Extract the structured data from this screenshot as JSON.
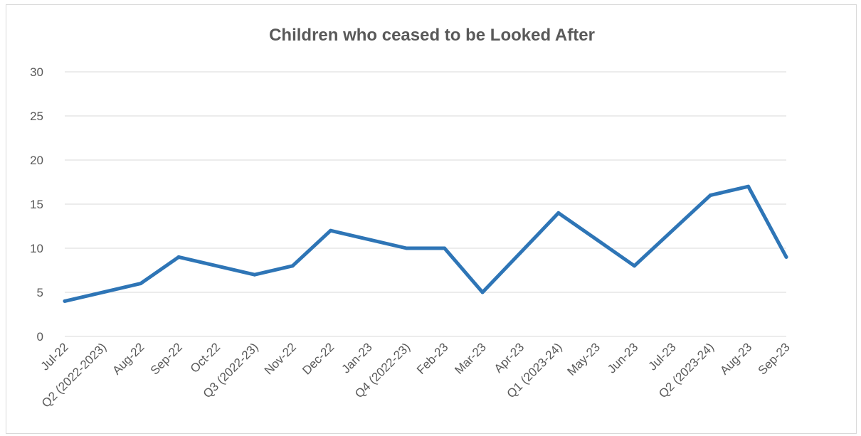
{
  "chart_data": {
    "type": "line",
    "title": "Children who ceased to be Looked After",
    "xlabel": "",
    "ylabel": "",
    "ylim": [
      0,
      30
    ],
    "yticks": [
      0,
      5,
      10,
      15,
      20,
      25,
      30
    ],
    "grid": true,
    "legend": "none",
    "categories": [
      "Jul-22",
      "Q2 (2022-2023)",
      "Aug-22",
      "Sep-22",
      "Oct-22",
      "Q3 (2022-23)",
      "Nov-22",
      "Dec-22",
      "Jan-23",
      "Q4 (2022-23)",
      "Feb-23",
      "Mar-23",
      "Apr-23",
      "Q1 (2023-24)",
      "May-23",
      "Jun-23",
      "Jul-23",
      "Q2 (2023-24)",
      "Aug-23",
      "Sep-23"
    ],
    "points": [
      {
        "x": "Jul-22",
        "y": 4
      },
      {
        "x": "Aug-22",
        "y": 6
      },
      {
        "x": "Sep-22",
        "y": 9
      },
      {
        "x": "Q3 (2022-23)",
        "y": 7
      },
      {
        "x": "Nov-22",
        "y": 8
      },
      {
        "x": "Dec-22",
        "y": 12
      },
      {
        "x": "Q4 (2022-23)",
        "y": 10
      },
      {
        "x": "Feb-23",
        "y": 10
      },
      {
        "x": "Mar-23",
        "y": 5
      },
      {
        "x": "Q1 (2023-24)",
        "y": 14
      },
      {
        "x": "May-23",
        "y": 11
      },
      {
        "x": "Jun-23",
        "y": 8
      },
      {
        "x": "Q2 (2023-24)",
        "y": 16
      },
      {
        "x": "Aug-23",
        "y": 17
      },
      {
        "x": "Sep-23",
        "y": 9
      }
    ],
    "series_color": "#2e75b6"
  }
}
